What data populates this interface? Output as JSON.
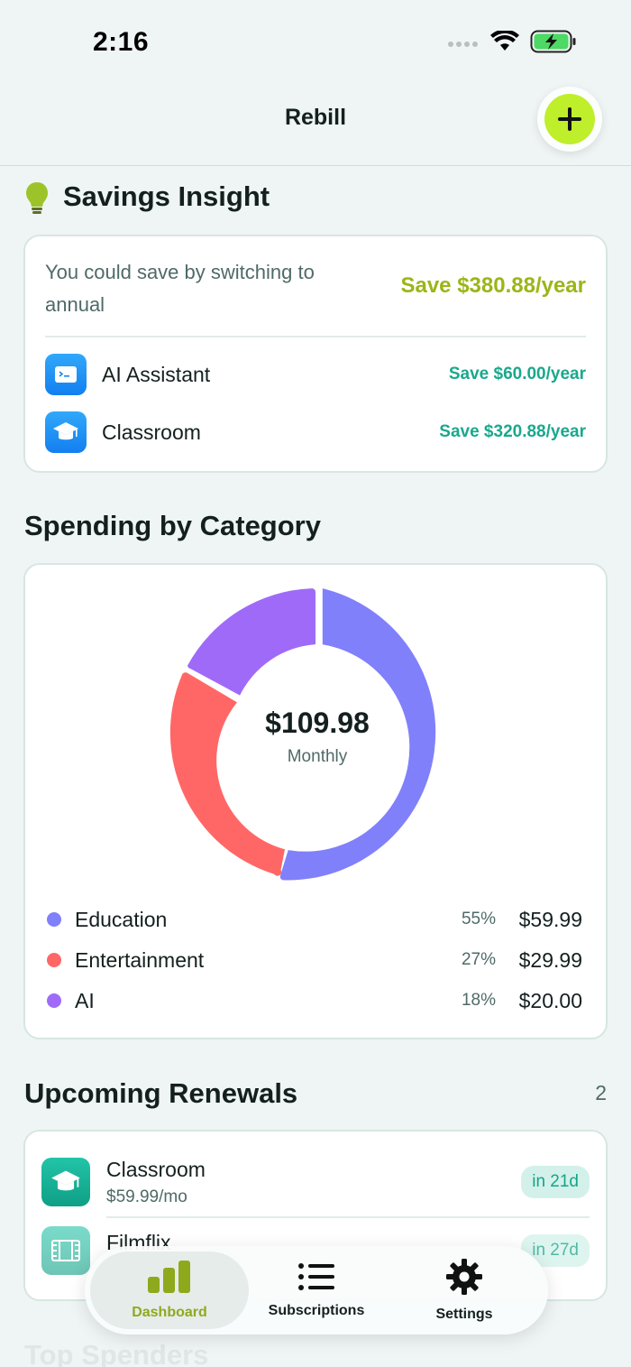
{
  "status": {
    "time": "2:16"
  },
  "nav": {
    "title": "Rebill",
    "add_icon": "plus-icon"
  },
  "insight": {
    "title": "Savings Insight",
    "text": "You could save by switching to annual",
    "total": "Save $380.88/year",
    "items": [
      {
        "name": "AI Assistant",
        "save": "Save $60.00/year",
        "icon": "terminal-icon"
      },
      {
        "name": "Classroom",
        "save": "Save $320.88/year",
        "icon": "graduation-cap-icon"
      }
    ]
  },
  "category": {
    "title": "Spending by Category",
    "total": "$109.98",
    "period": "Monthly",
    "items": [
      {
        "name": "Education",
        "pct": "55%",
        "amount": "$59.99",
        "color": "#8080fb"
      },
      {
        "name": "Entertainment",
        "pct": "27%",
        "amount": "$29.99",
        "color": "#ff6767"
      },
      {
        "name": "AI",
        "pct": "18%",
        "amount": "$20.00",
        "color": "#a06af9"
      }
    ]
  },
  "renewals": {
    "title": "Upcoming Renewals",
    "count": "2",
    "items": [
      {
        "name": "Classroom",
        "price": "$59.99/mo",
        "due": "in 21d",
        "icon": "graduation-cap-icon"
      },
      {
        "name": "Filmflix",
        "price": "",
        "due": "in 27d",
        "icon": "film-icon"
      }
    ]
  },
  "top_spenders": {
    "title": "Top Spenders"
  },
  "tabs": [
    {
      "label": "Dashboard",
      "icon": "bar-chart-icon",
      "active": true
    },
    {
      "label": "Subscriptions",
      "icon": "list-icon",
      "active": false
    },
    {
      "label": "Settings",
      "icon": "gear-icon",
      "active": false
    }
  ]
}
